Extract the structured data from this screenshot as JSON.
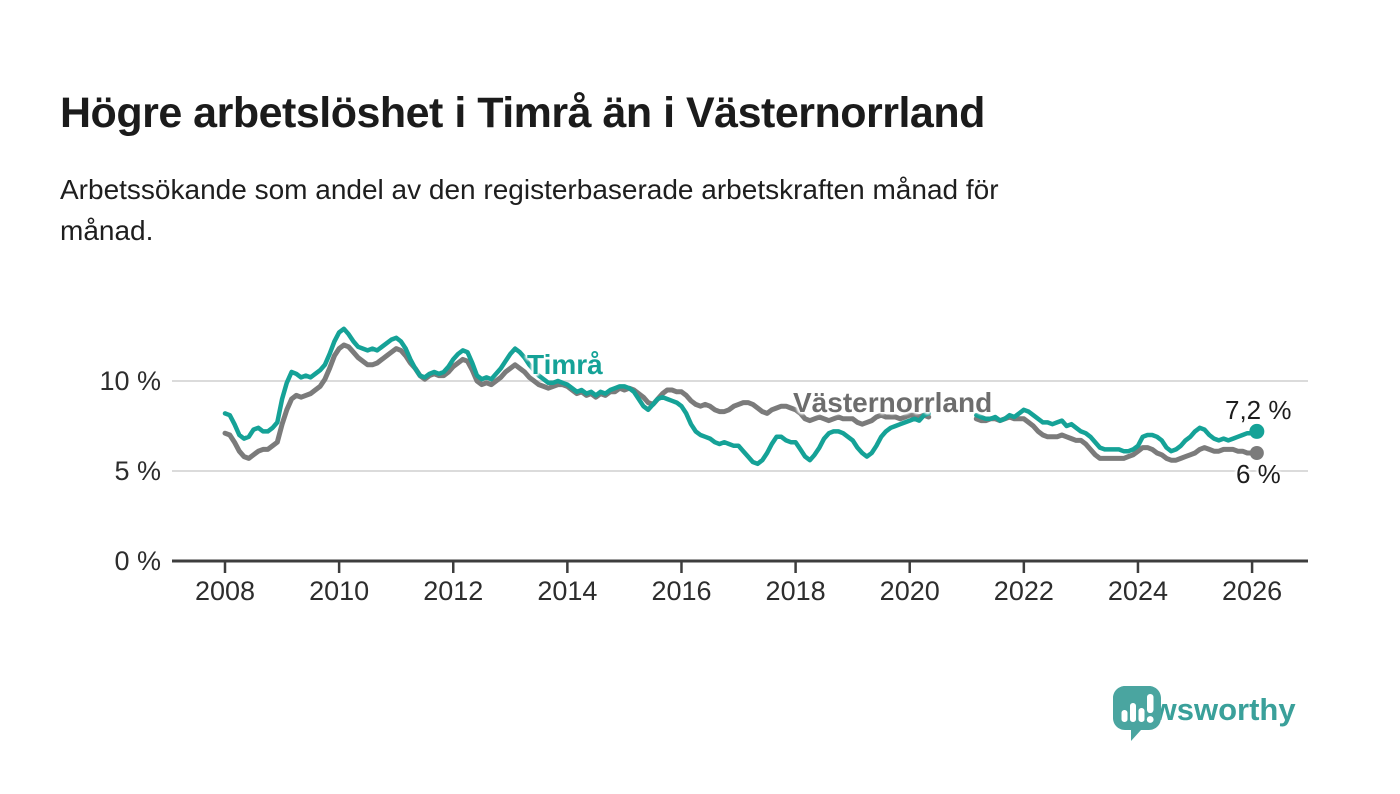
{
  "header": {
    "title": "Högre arbetslöshet i Timrå än i Västernorrland",
    "subtitle_lines": [
      "Arbetssökande som andel av den registerbaserade arbetskraften månad för",
      "månad."
    ]
  },
  "chart_data": {
    "type": "line",
    "unit": "%",
    "x_start_year": 2008,
    "x_step_months": 1,
    "x_end": "2026-02",
    "data_gap": "2020-06 to 2021-02 (null values = no published data)",
    "x_ticks": [
      "2008",
      "2010",
      "2012",
      "2014",
      "2016",
      "2018",
      "2020",
      "2022",
      "2024",
      "2026"
    ],
    "y_ticks": [
      {
        "value": 0,
        "label": "0 %"
      },
      {
        "value": 5,
        "label": "5 %"
      },
      {
        "value": 10,
        "label": "10 %"
      }
    ],
    "ylim": [
      0,
      13.5
    ],
    "grid_color": "#dbdbdb",
    "axis_color": "#3d3d3d",
    "tick_label_color": "#2d2d2d",
    "series": [
      {
        "name": "Timrå",
        "color": "#15a297",
        "label_color": "#15a297",
        "end_label": "7,2 %",
        "last_value": 7.2,
        "line_width": 4.5,
        "values": [
          8.2,
          8.1,
          7.6,
          7.0,
          6.8,
          6.9,
          7.3,
          7.4,
          7.2,
          7.2,
          7.4,
          7.7,
          9.0,
          9.9,
          10.5,
          10.4,
          10.2,
          10.3,
          10.2,
          10.4,
          10.6,
          10.9,
          11.5,
          12.2,
          12.7,
          12.9,
          12.6,
          12.2,
          11.9,
          11.8,
          11.7,
          11.8,
          11.7,
          11.9,
          12.1,
          12.3,
          12.4,
          12.2,
          11.8,
          11.2,
          10.7,
          10.3,
          10.2,
          10.4,
          10.5,
          10.4,
          10.5,
          10.8,
          11.2,
          11.5,
          11.7,
          11.6,
          11.0,
          10.3,
          10.1,
          10.2,
          10.1,
          10.4,
          10.7,
          11.1,
          11.5,
          11.8,
          11.6,
          11.3,
          10.9,
          10.6,
          10.3,
          10.1,
          9.9,
          9.9,
          10.0,
          9.9,
          9.8,
          9.6,
          9.4,
          9.5,
          9.3,
          9.4,
          9.2,
          9.4,
          9.3,
          9.5,
          9.6,
          9.7,
          9.7,
          9.6,
          9.4,
          9.0,
          8.6,
          8.4,
          8.7,
          9.0,
          9.1,
          9.0,
          8.9,
          8.8,
          8.6,
          8.2,
          7.6,
          7.2,
          7.0,
          6.9,
          6.8,
          6.6,
          6.5,
          6.6,
          6.5,
          6.4,
          6.4,
          6.1,
          5.8,
          5.5,
          5.4,
          5.6,
          6.0,
          6.5,
          6.9,
          6.9,
          6.7,
          6.6,
          6.6,
          6.2,
          5.8,
          5.6,
          5.9,
          6.3,
          6.8,
          7.1,
          7.2,
          7.2,
          7.1,
          6.9,
          6.7,
          6.3,
          6.0,
          5.8,
          6.0,
          6.4,
          6.9,
          7.2,
          7.4,
          7.5,
          7.6,
          7.7,
          7.8,
          7.9,
          7.8,
          8.1,
          8.2,
          null,
          null,
          null,
          null,
          null,
          null,
          null,
          null,
          null,
          8.1,
          8.0,
          7.9,
          7.9,
          8.0,
          7.8,
          7.9,
          8.1,
          8.0,
          8.2,
          8.4,
          8.3,
          8.1,
          7.9,
          7.7,
          7.7,
          7.6,
          7.7,
          7.8,
          7.5,
          7.6,
          7.4,
          7.2,
          7.1,
          6.9,
          6.6,
          6.3,
          6.2,
          6.2,
          6.2,
          6.2,
          6.1,
          6.1,
          6.2,
          6.4,
          6.9,
          7.0,
          7.0,
          6.9,
          6.7,
          6.3,
          6.1,
          6.2,
          6.4,
          6.7,
          6.9,
          7.2,
          7.4,
          7.3,
          7.0,
          6.8,
          6.7,
          6.8,
          6.7,
          6.8,
          6.9,
          7.0,
          7.1,
          7.1,
          7.2
        ]
      },
      {
        "name": "Västernorrland",
        "color": "#7b7b7b",
        "label_color": "#6d6d6d",
        "end_label": "6 %",
        "last_value": 6.0,
        "line_width": 5,
        "values": [
          7.1,
          7.0,
          6.6,
          6.1,
          5.8,
          5.7,
          5.9,
          6.1,
          6.2,
          6.2,
          6.4,
          6.6,
          7.6,
          8.4,
          9.0,
          9.2,
          9.1,
          9.2,
          9.3,
          9.5,
          9.7,
          10.1,
          10.7,
          11.4,
          11.8,
          12.0,
          11.9,
          11.6,
          11.3,
          11.1,
          10.9,
          10.9,
          11.0,
          11.2,
          11.4,
          11.6,
          11.8,
          11.7,
          11.4,
          11.0,
          10.7,
          10.3,
          10.1,
          10.3,
          10.4,
          10.3,
          10.3,
          10.5,
          10.8,
          11.0,
          11.2,
          11.1,
          10.6,
          10.0,
          9.8,
          9.9,
          9.8,
          10.0,
          10.2,
          10.5,
          10.7,
          10.9,
          10.7,
          10.5,
          10.2,
          10.0,
          9.8,
          9.7,
          9.6,
          9.7,
          9.8,
          9.8,
          9.7,
          9.5,
          9.3,
          9.4,
          9.2,
          9.3,
          9.1,
          9.3,
          9.2,
          9.4,
          9.4,
          9.6,
          9.5,
          9.6,
          9.5,
          9.3,
          9.1,
          8.8,
          8.7,
          9.0,
          9.3,
          9.5,
          9.5,
          9.4,
          9.4,
          9.2,
          8.9,
          8.7,
          8.6,
          8.7,
          8.6,
          8.4,
          8.3,
          8.3,
          8.4,
          8.6,
          8.7,
          8.8,
          8.8,
          8.7,
          8.5,
          8.3,
          8.2,
          8.4,
          8.5,
          8.6,
          8.6,
          8.5,
          8.4,
          8.2,
          7.9,
          7.8,
          7.9,
          8.0,
          7.9,
          7.8,
          7.9,
          8.0,
          7.9,
          7.9,
          7.9,
          7.7,
          7.6,
          7.7,
          7.8,
          8.0,
          8.1,
          8.0,
          8.0,
          8.0,
          7.9,
          8.0,
          8.1,
          8.1,
          8.0,
          8.1,
          8.0,
          null,
          null,
          null,
          null,
          null,
          null,
          null,
          null,
          null,
          7.9,
          7.8,
          7.8,
          7.9,
          7.9,
          7.8,
          7.9,
          8.0,
          7.9,
          7.9,
          7.9,
          7.7,
          7.5,
          7.2,
          7.0,
          6.9,
          6.9,
          6.9,
          7.0,
          6.9,
          6.8,
          6.7,
          6.7,
          6.5,
          6.2,
          5.9,
          5.7,
          5.7,
          5.7,
          5.7,
          5.7,
          5.7,
          5.8,
          5.9,
          6.1,
          6.3,
          6.3,
          6.2,
          6.0,
          5.9,
          5.7,
          5.6,
          5.6,
          5.7,
          5.8,
          5.9,
          6.0,
          6.2,
          6.3,
          6.2,
          6.1,
          6.1,
          6.2,
          6.2,
          6.2,
          6.1,
          6.1,
          6.0,
          6.0,
          6.0
        ]
      }
    ]
  },
  "branding": {
    "name": "Newsworthy",
    "logo_icon": "speech-bubble-bar-chart-icon",
    "logo_color": "#4aa5a0",
    "wordmark_color": "#3aa09a"
  }
}
